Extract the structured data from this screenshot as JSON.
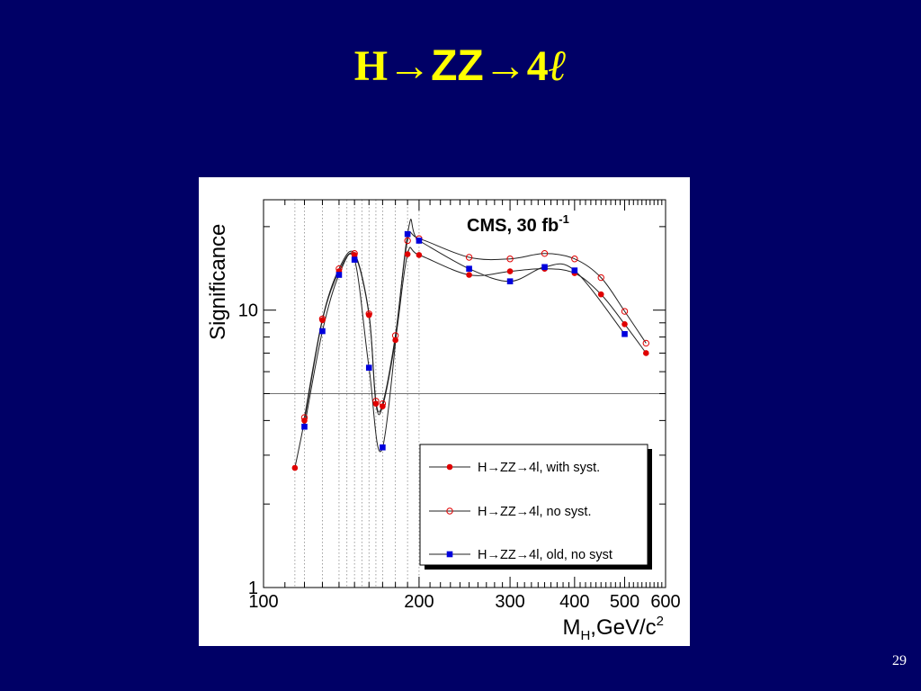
{
  "slide": {
    "title_h": "H",
    "title_arrow1": "→",
    "title_zz": "ZZ",
    "title_arrow2": "→",
    "title_4": "4",
    "title_ell": "ℓ",
    "page_number": "29",
    "background_color": "#000066",
    "title_color": "#ffff00"
  },
  "chart_data": {
    "type": "line",
    "annotation": "CMS, 30 fb",
    "annotation_sup": "-1",
    "ylabel": "Significance",
    "xlabel_main": "M",
    "xlabel_sub": "H",
    "xlabel_rest": ",GeV/c",
    "xlabel_sup": "2",
    "x_scale": "log",
    "y_scale": "log",
    "xlim": [
      100,
      600
    ],
    "ylim": [
      1,
      25
    ],
    "x_ticks": [
      {
        "value": 100,
        "label": "100"
      },
      {
        "value": 200,
        "label": "200"
      },
      {
        "value": 300,
        "label": "300"
      },
      {
        "value": 400,
        "label": "400"
      },
      {
        "value": 500,
        "label": "500"
      },
      {
        "value": 600,
        "label": "600"
      }
    ],
    "y_ticks": [
      {
        "value": 1,
        "label": "1"
      },
      {
        "value": 10,
        "label": "10"
      }
    ],
    "vertical_dotted_lines": [
      115,
      120,
      130,
      140,
      145,
      150,
      155,
      160,
      165,
      170,
      180,
      190,
      200
    ],
    "horizontal_reference": 5,
    "series": [
      {
        "name": "H→ZZ→4l, with syst.",
        "marker": "filled-circle",
        "color": "#e00000",
        "x": [
          115,
          120,
          130,
          140,
          150,
          160,
          165,
          170,
          180,
          190,
          200,
          250,
          300,
          350,
          400,
          450,
          500,
          550
        ],
        "y": [
          2.7,
          4.0,
          9.2,
          13.8,
          15.8,
          9.6,
          4.6,
          4.5,
          7.8,
          15.9,
          15.8,
          13.4,
          13.8,
          14.1,
          13.6,
          11.4,
          8.9,
          7.0
        ]
      },
      {
        "name": "H→ZZ→4l, no syst.",
        "marker": "open-circle",
        "color": "#e00000",
        "x": [
          120,
          130,
          140,
          150,
          160,
          165,
          170,
          180,
          190,
          200,
          250,
          300,
          350,
          400,
          450,
          500,
          550
        ],
        "y": [
          4.1,
          9.3,
          14.1,
          16.0,
          9.7,
          4.7,
          4.6,
          8.1,
          17.8,
          18.1,
          15.5,
          15.3,
          16.0,
          15.3,
          13.1,
          9.9,
          7.6
        ]
      },
      {
        "name": "H→ZZ→4l, old, no syst",
        "marker": "filled-square",
        "color": "#0000dd",
        "x": [
          120,
          130,
          140,
          150,
          160,
          170,
          190,
          200,
          250,
          300,
          350,
          400,
          500
        ],
        "y": [
          3.8,
          8.4,
          13.4,
          15.2,
          6.2,
          3.2,
          18.8,
          17.8,
          14.1,
          12.7,
          14.3,
          13.9,
          8.2
        ]
      }
    ],
    "legend": {
      "placement": "bottom-right",
      "entries": [
        {
          "text": "H→ZZ→4l, with syst."
        },
        {
          "text": "H→ZZ→4l, no syst."
        },
        {
          "text": "H→ZZ→4l, old, no syst"
        }
      ]
    }
  }
}
